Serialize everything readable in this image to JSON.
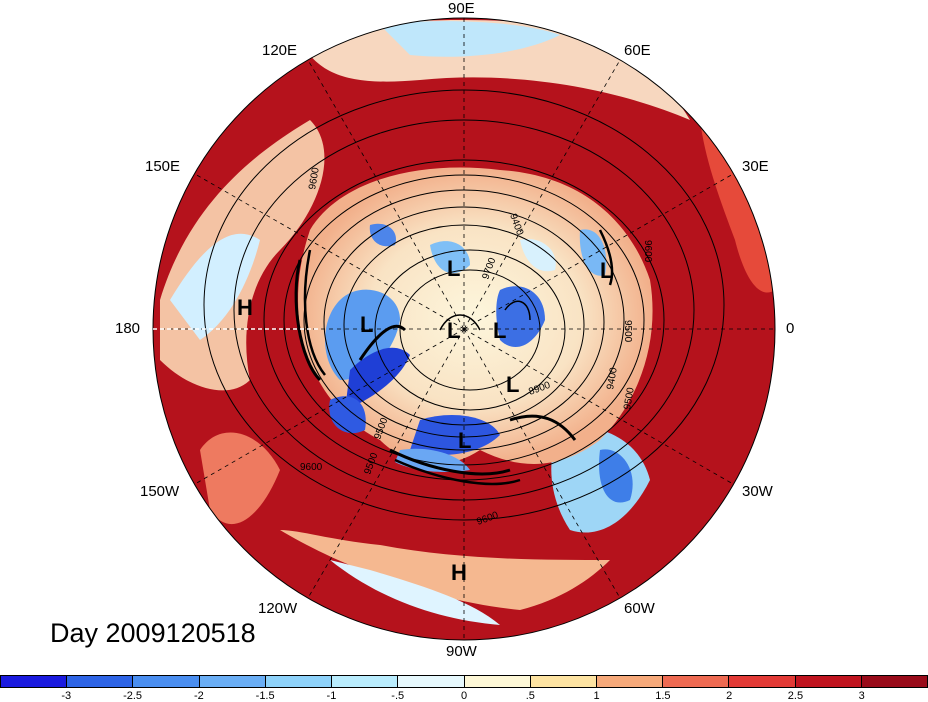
{
  "title": "Day 2009120518",
  "longitude_labels": [
    "90E",
    "120E",
    "60E",
    "150E",
    "30E",
    "180",
    "0",
    "150W",
    "30W",
    "120W",
    "60W",
    "90W"
  ],
  "pressure_systems": [
    "H",
    "H",
    "L",
    "L",
    "L",
    "L",
    "L",
    "L",
    "L"
  ],
  "contour_labels": [
    "9600",
    "9600",
    "9500",
    "9500",
    "9400",
    "9400",
    "8900",
    "9500",
    "9600",
    "9700",
    "9600",
    "9500"
  ],
  "colorbar": {
    "ticks": [
      "-3",
      "-2.5",
      "-2",
      "-1.5",
      "-1",
      "-.5",
      "0",
      ".5",
      "1",
      "1.5",
      "2",
      "2.5",
      "3"
    ],
    "colors": [
      "#1a1adf",
      "#2d64e6",
      "#4a8ef0",
      "#6aaef5",
      "#8ed2fa",
      "#b9ecfd",
      "#e6f8fd",
      "#fdf7d6",
      "#fde3a2",
      "#f6a97a",
      "#ee6a52",
      "#e23a36",
      "#c0141f",
      "#990b1a"
    ]
  }
}
